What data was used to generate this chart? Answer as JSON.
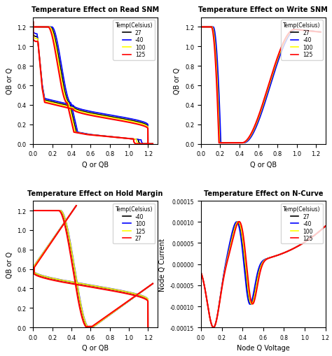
{
  "titles": [
    "Temperature Effect on Read SNM",
    "Temperature Effect on Write SNM",
    "Temperature Effect on Hold Margin",
    "Temperature Effect on N-Curve"
  ],
  "xlabels": [
    "Q or QB",
    "Q or QB",
    "Q or QB",
    "Node Q Voltage"
  ],
  "ylabels": [
    "QB or Q",
    "QB or Q",
    "QB or Q",
    "Node Q Current"
  ],
  "legend_title": "Temp(Celsius)",
  "read_legend": [
    "27",
    "-40",
    "100",
    "125"
  ],
  "read_colors": [
    "black",
    "blue",
    "yellow",
    "red"
  ],
  "write_legend": [
    "27",
    "-40",
    "100",
    "125"
  ],
  "write_colors": [
    "black",
    "blue",
    "yellow",
    "red"
  ],
  "hold_legend": [
    "-40",
    "100",
    "125",
    "27"
  ],
  "hold_colors": [
    "black",
    "blue",
    "yellow",
    "red"
  ],
  "ncurve_legend": [
    "27",
    "-40",
    "100",
    "125"
  ],
  "ncurve_colors": [
    "black",
    "blue",
    "yellow",
    "red"
  ],
  "xmax": 1.2,
  "ymax": 1.2
}
